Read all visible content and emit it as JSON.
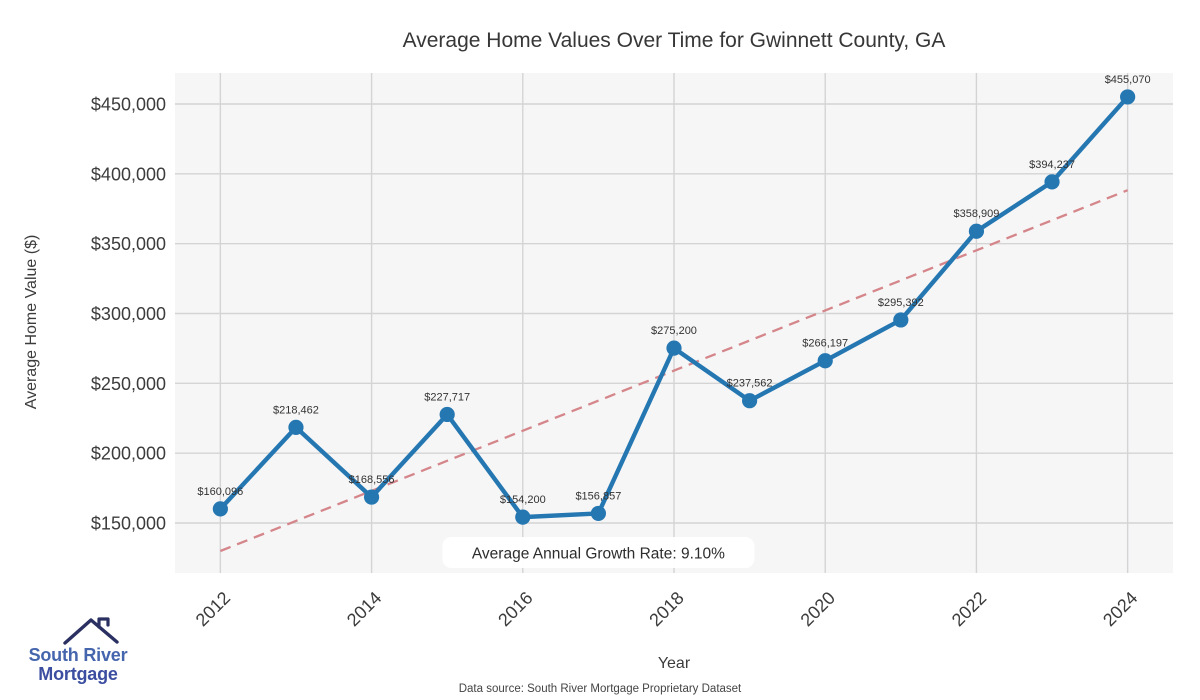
{
  "chart_data": {
    "type": "line",
    "title": "Average Home Values Over Time for Gwinnett County, GA",
    "xlabel": "Year",
    "ylabel": "Average Home Value ($)",
    "x": [
      2012,
      2013,
      2014,
      2015,
      2016,
      2017,
      2018,
      2019,
      2020,
      2021,
      2022,
      2023,
      2024
    ],
    "values": [
      160096,
      218462,
      168556,
      227717,
      154200,
      156857,
      275200,
      237562,
      266197,
      295392,
      358909,
      394237,
      455070
    ],
    "point_labels": [
      "$160,096",
      "$218,462",
      "$168,556",
      "$227,717",
      "$154,200",
      "$156,857",
      "$275,200",
      "$237,562",
      "$266,197",
      "$295,392",
      "$358,909",
      "$394,237",
      "$455,070"
    ],
    "xticks": [
      2012,
      2014,
      2016,
      2018,
      2020,
      2022,
      2024
    ],
    "xtick_labels": [
      "2012",
      "2014",
      "2016",
      "2018",
      "2020",
      "2022",
      "2024"
    ],
    "yticks": [
      150000,
      200000,
      250000,
      300000,
      350000,
      400000,
      450000
    ],
    "ytick_labels": [
      "$150,000",
      "$200,000",
      "$250,000",
      "$300,000",
      "$350,000",
      "$400,000",
      "$450,000"
    ],
    "xlim": [
      2011.4,
      2024.6
    ],
    "ylim": [
      114200,
      472200
    ],
    "grid": true,
    "legend": "none",
    "trend_line": {
      "style": "dashed",
      "x": [
        2012,
        2024
      ],
      "values": [
        129956,
        388268
      ]
    },
    "annotation": {
      "text": "Average Annual Growth Rate: 9.10%",
      "x": 2017,
      "y": 128500
    },
    "colors": {
      "line": "#2577b2",
      "marker": "#2577b2",
      "trend": "#d5868a",
      "plot_bg": "#f6f6f7",
      "grid": "#d4d4d4",
      "annotation_bg": "#ffffff"
    }
  },
  "footer": {
    "source": "Data source: South River Mortgage Proprietary Dataset"
  },
  "logo": {
    "line1": "South River",
    "line2": "Mortgage",
    "colors": {
      "roof": "#2a3061",
      "line1": "#4565ad",
      "line2": "#3c4ea0"
    }
  }
}
